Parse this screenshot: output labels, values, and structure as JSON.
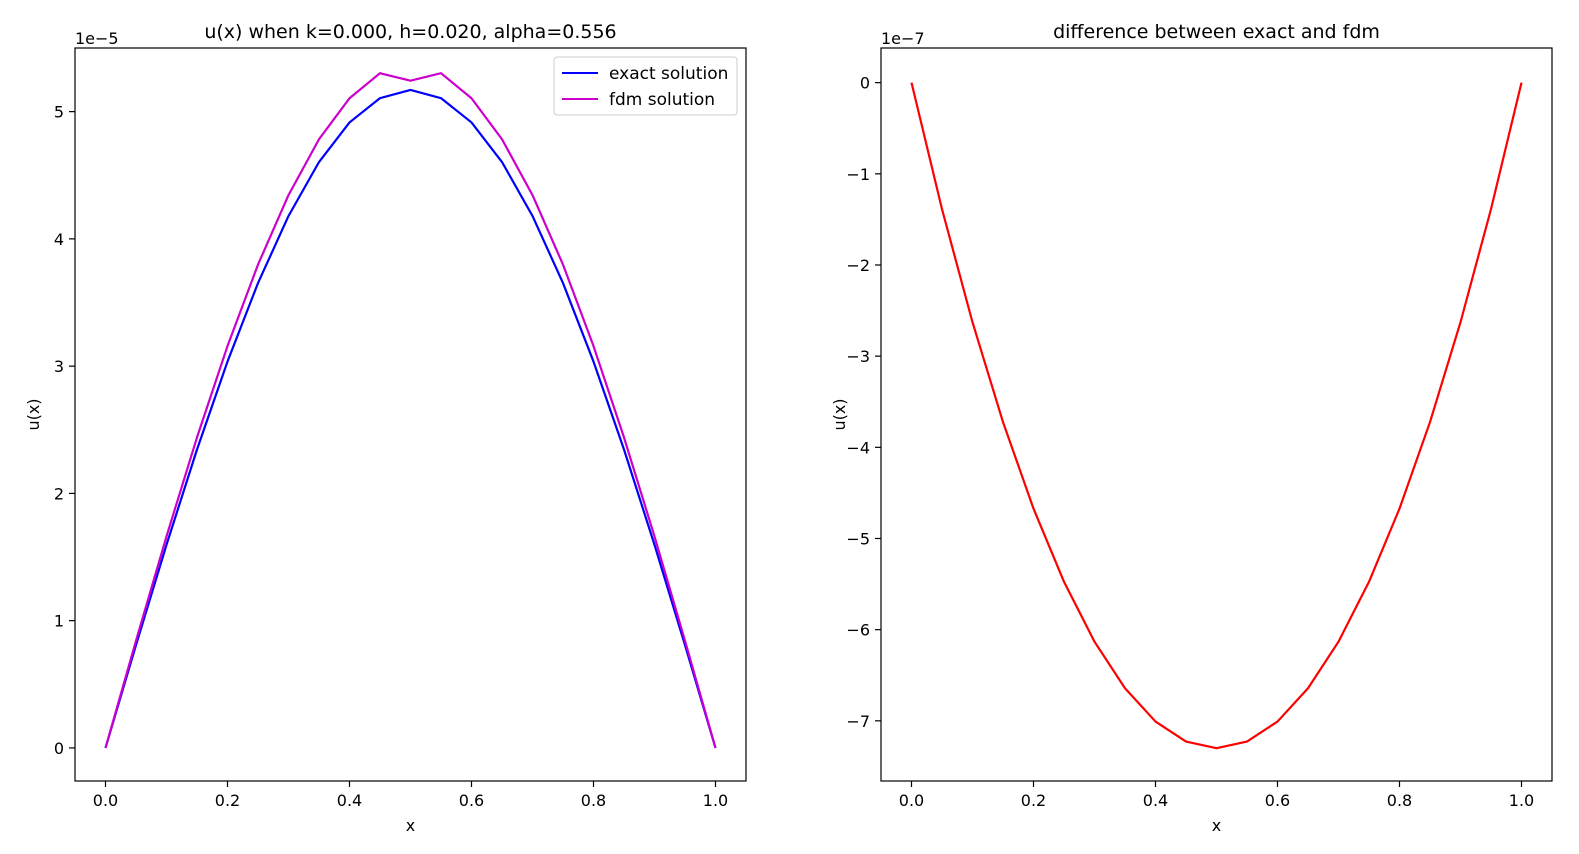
{
  "chart_data": [
    {
      "type": "line",
      "title": "u(x) when k=0.000, h=0.020, alpha=0.556",
      "xlabel": "x",
      "ylabel": "u(x)",
      "offset_text": "1e−5",
      "xlim": [
        -0.05,
        1.05
      ],
      "ylim": [
        -0.26,
        5.5
      ],
      "y_scale_exponent": -5,
      "x_ticks": [
        0.0,
        0.2,
        0.4,
        0.6,
        0.8,
        1.0
      ],
      "x_tick_labels": [
        "0.0",
        "0.2",
        "0.4",
        "0.6",
        "0.8",
        "1.0"
      ],
      "y_ticks": [
        0,
        1,
        2,
        3,
        4,
        5
      ],
      "y_tick_labels": [
        "0",
        "1",
        "2",
        "3",
        "4",
        "5"
      ],
      "legend": "upper right",
      "grid": false,
      "x": [
        0.0,
        0.05,
        0.1,
        0.15,
        0.2,
        0.25,
        0.3,
        0.35,
        0.4,
        0.45,
        0.5,
        0.55,
        0.6,
        0.65,
        0.7,
        0.75,
        0.8,
        0.85,
        0.9,
        0.95,
        1.0
      ],
      "series": [
        {
          "name": "exact solution",
          "color": "#0000ff",
          "values": [
            0.0,
            0.808,
            1.596,
            2.345,
            3.036,
            3.653,
            4.18,
            4.604,
            4.915,
            5.106,
            5.17,
            5.106,
            4.915,
            4.604,
            4.18,
            3.653,
            3.036,
            2.345,
            1.596,
            0.808,
            0.0
          ]
        },
        {
          "name": "fdm solution",
          "color": "#cc00cc",
          "values": [
            0.0,
            0.842,
            1.662,
            2.44,
            3.158,
            3.798,
            4.344,
            4.783,
            5.105,
            5.302,
            5.243,
            5.302,
            5.105,
            4.783,
            4.344,
            3.798,
            3.158,
            2.44,
            1.662,
            0.842,
            0.0
          ]
        }
      ]
    },
    {
      "type": "line",
      "title": "difference between exact and fdm",
      "xlabel": "x",
      "ylabel": "u(x)",
      "offset_text": "1e−7",
      "xlim": [
        -0.05,
        1.05
      ],
      "ylim": [
        -7.66,
        0.38
      ],
      "y_scale_exponent": -7,
      "x_ticks": [
        0.0,
        0.2,
        0.4,
        0.6,
        0.8,
        1.0
      ],
      "x_tick_labels": [
        "0.0",
        "0.2",
        "0.4",
        "0.6",
        "0.8",
        "1.0"
      ],
      "y_ticks": [
        0,
        -1,
        -2,
        -3,
        -4,
        -5,
        -6,
        -7
      ],
      "y_tick_labels": [
        "0",
        "−1",
        "−2",
        "−3",
        "−4",
        "−5",
        "−6",
        "−7"
      ],
      "grid": false,
      "x": [
        0.0,
        0.05,
        0.1,
        0.15,
        0.2,
        0.25,
        0.3,
        0.35,
        0.4,
        0.45,
        0.5,
        0.55,
        0.6,
        0.65,
        0.7,
        0.75,
        0.8,
        0.85,
        0.9,
        0.95,
        1.0
      ],
      "series": [
        {
          "color": "#ff0000",
          "values": [
            0.0,
            -1.387,
            -2.628,
            -3.723,
            -4.672,
            -5.475,
            -6.132,
            -6.643,
            -7.008,
            -7.227,
            -7.3,
            -7.227,
            -7.008,
            -6.643,
            -6.132,
            -5.475,
            -4.672,
            -3.723,
            -2.628,
            -1.387,
            0.0
          ]
        }
      ]
    }
  ]
}
